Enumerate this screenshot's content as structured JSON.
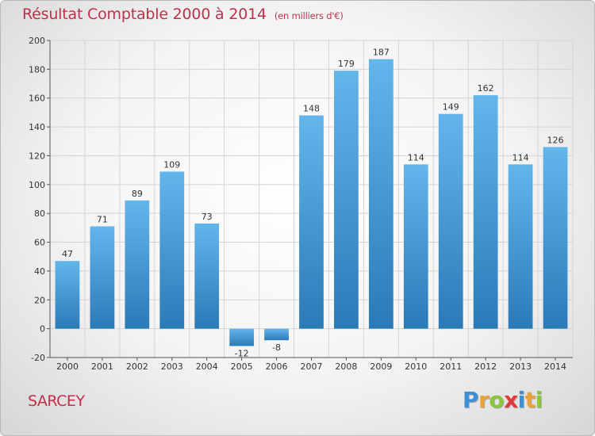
{
  "header": {
    "title": "Résultat Comptable 2000 à 2014",
    "subtitle": "(en milliers d'€)"
  },
  "footer": {
    "commune": "SARCEY",
    "logo_text": "Proxiti",
    "logo_colors": [
      "#3a8fd6",
      "#e8a33a",
      "#8cc63f",
      "#e03b3b",
      "#3a8fd6",
      "#e8a33a",
      "#8cc63f"
    ]
  },
  "colors": {
    "title": "#c0304a",
    "bar_top": "#62b6ec",
    "bar_bottom": "#2a7ab8",
    "grid": "#d4d4d4",
    "axis": "#555555"
  },
  "chart_data": {
    "type": "bar",
    "categories": [
      "2000",
      "2001",
      "2002",
      "2003",
      "2004",
      "2005",
      "2006",
      "2007",
      "2008",
      "2009",
      "2010",
      "2011",
      "2012",
      "2013",
      "2014"
    ],
    "values": [
      47,
      71,
      89,
      109,
      73,
      -12,
      -8,
      148,
      179,
      187,
      114,
      149,
      162,
      114,
      126
    ],
    "ylim": [
      -20,
      200
    ],
    "yticks": [
      -20,
      0,
      20,
      40,
      60,
      80,
      100,
      120,
      140,
      160,
      180,
      200
    ],
    "grid": true,
    "legend": "none"
  }
}
